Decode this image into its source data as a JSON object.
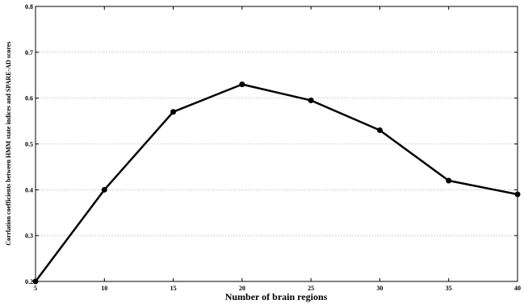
{
  "chart_data": {
    "type": "line",
    "title": "",
    "xlabel": "Number of brain regions",
    "ylabel": "Corrlation coefficients between HMM state indices and SPARE-AD scores",
    "x": [
      5,
      10,
      15,
      20,
      25,
      30,
      35,
      40
    ],
    "series": [
      {
        "values": [
          0.2,
          0.4,
          0.57,
          0.63,
          0.595,
          0.53,
          0.42,
          0.39
        ]
      }
    ],
    "xlim": [
      5,
      40
    ],
    "ylim": [
      0.2,
      0.8
    ],
    "xticks": [
      "5",
      "10",
      "15",
      "20",
      "25",
      "30",
      "35",
      "40"
    ],
    "yticks": [
      "0.2",
      "0.3",
      "0.4",
      "0.5",
      "0.6",
      "0.7",
      "0.8"
    ],
    "grid": "horizontal dotted",
    "legend": "none",
    "line_color": "#000000",
    "marker": "filled-circle"
  }
}
